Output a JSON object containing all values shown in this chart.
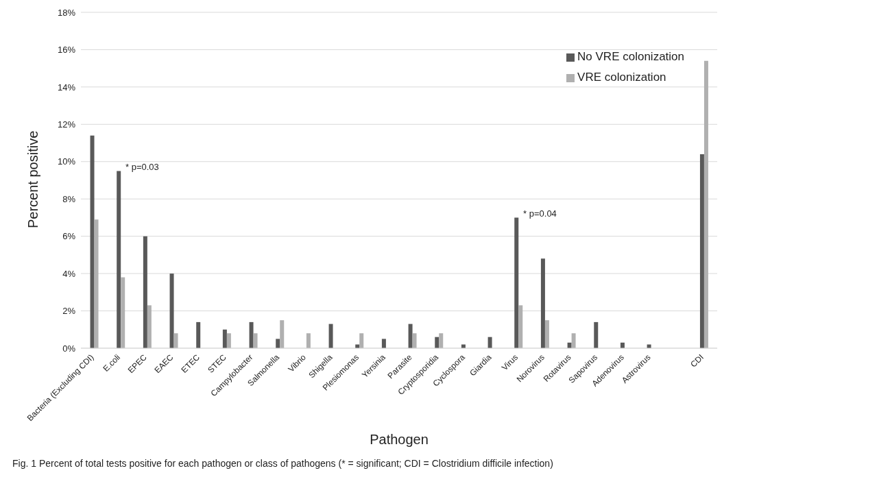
{
  "chart_data": {
    "type": "bar",
    "xlabel": "Pathogen",
    "ylabel": "Percent positive",
    "categories": [
      "Bacteria (Excluding CDI)",
      "E.coli",
      "EPEC",
      "EAEC",
      "ETEC",
      "STEC",
      "Campylobacter",
      "Salmonella",
      "Vibrio",
      "Shigella",
      "Plesiomonas",
      "Yersinia",
      "Parasite",
      "Cryptosporidia",
      "Cyclospora",
      "Giardia",
      "Virus",
      "Norovirus",
      "Rotavirus",
      "Sapovirus",
      "Adenovirus",
      "Astrovirus",
      null,
      "CDI"
    ],
    "series": [
      {
        "name": "No VRE colonization",
        "color": "#595959",
        "values": [
          11.4,
          9.5,
          6.0,
          4.0,
          1.4,
          1.0,
          1.4,
          0.5,
          0,
          1.3,
          0.2,
          0.5,
          1.3,
          0.6,
          0.2,
          0.6,
          7.0,
          4.8,
          0.3,
          1.4,
          0.3,
          0.2,
          null,
          10.4
        ]
      },
      {
        "name": "VRE colonization",
        "color": "#b0b0b0",
        "values": [
          6.9,
          3.8,
          2.3,
          0.8,
          0,
          0.8,
          0.8,
          1.5,
          0.8,
          0,
          0.8,
          0,
          0.8,
          0.8,
          0,
          0,
          2.3,
          1.5,
          0.8,
          0,
          0,
          0,
          null,
          15.4
        ]
      }
    ],
    "ylim": [
      0,
      18
    ],
    "yticks": [
      {
        "value": 0,
        "label": "0%"
      },
      {
        "value": 2,
        "label": "2%"
      },
      {
        "value": 4,
        "label": "4%"
      },
      {
        "value": 6,
        "label": "6%"
      },
      {
        "value": 8,
        "label": "8%"
      },
      {
        "value": 10,
        "label": "10%"
      },
      {
        "value": 12,
        "label": "12%"
      },
      {
        "value": 14,
        "label": "14%"
      },
      {
        "value": 16,
        "label": "16%"
      },
      {
        "value": 18,
        "label": "18%"
      }
    ],
    "grid": "y",
    "legend": "top right",
    "annotations": [
      {
        "text": "* p=0.03",
        "x": "E.coli",
        "y": 9.5
      },
      {
        "text": "* p=0.04",
        "x": "Virus",
        "y": 7.0
      },
      "Fig. 1 Percent of total tests positive for each pathogen or class of pathogens (* = significant; CDI = Clostridium difficile infection)"
    ]
  }
}
